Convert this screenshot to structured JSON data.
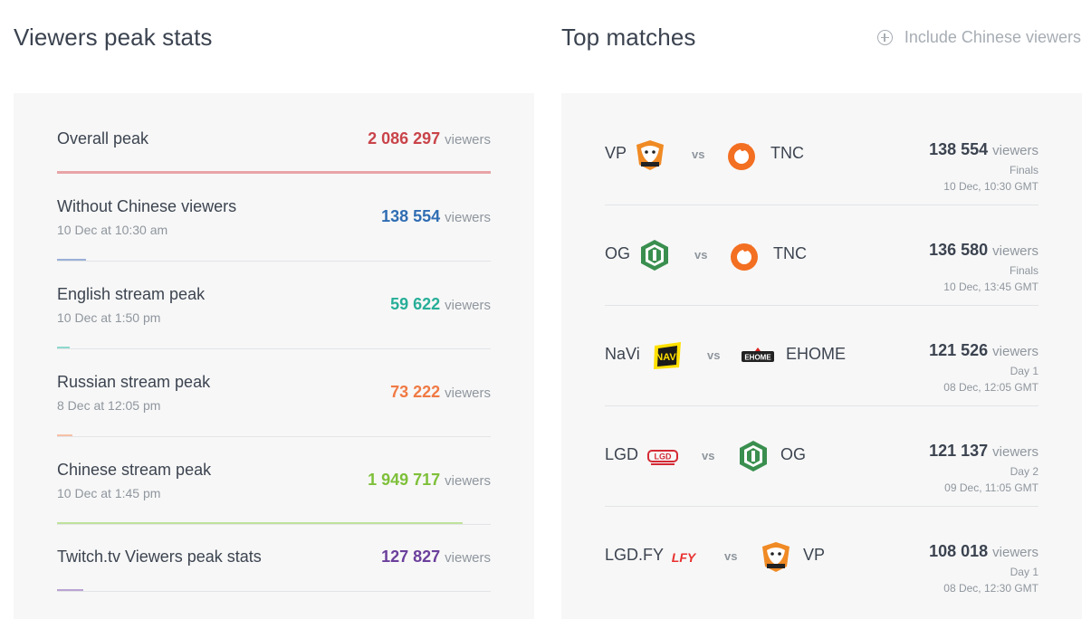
{
  "left": {
    "title": "Viewers peak stats",
    "stats": [
      {
        "label": "Overall peak",
        "date": "",
        "value": "2 086 297",
        "unit": "viewers",
        "color": "#c9444a",
        "bar_color": "#e8a4a6",
        "bar_fraction": 1.0
      },
      {
        "label": "Without Chinese viewers",
        "date": "10 Dec at 10:30 am",
        "value": "138 554",
        "unit": "viewers",
        "color": "#2f6db3",
        "bar_color": "#9ab0d8",
        "bar_fraction": 0.066
      },
      {
        "label": "English stream peak",
        "date": "10 Dec at 1:50 pm",
        "value": "59 622",
        "unit": "viewers",
        "color": "#27ae98",
        "bar_color": "#8fd8cc",
        "bar_fraction": 0.029
      },
      {
        "label": "Russian stream peak",
        "date": "8 Dec at 12:05 pm",
        "value": "73 222",
        "unit": "viewers",
        "color": "#f07a44",
        "bar_color": "#f7c0a5",
        "bar_fraction": 0.035
      },
      {
        "label": "Chinese stream peak",
        "date": "10 Dec at 1:45 pm",
        "value": "1 949 717",
        "unit": "viewers",
        "color": "#7ec03a",
        "bar_color": "#bfe29d",
        "bar_fraction": 0.935
      },
      {
        "label": "Twitch.tv Viewers peak stats",
        "date": "",
        "value": "127 827",
        "unit": "viewers",
        "color": "#6b3f9c",
        "bar_color": "#b9a3d3",
        "bar_fraction": 0.061
      }
    ]
  },
  "right": {
    "title": "Top matches",
    "toggle_label": "Include Chinese viewers",
    "vs_label": "vs",
    "matches": [
      {
        "team1": "VP",
        "logo1": "virtus-pro-logo",
        "team2": "TNC",
        "logo2": "tnc-logo",
        "viewers": "138 554",
        "unit": "viewers",
        "stage": "Finals",
        "date": "10 Dec, 10:30 GMT"
      },
      {
        "team1": "OG",
        "logo1": "og-logo",
        "team2": "TNC",
        "logo2": "tnc-logo",
        "viewers": "136 580",
        "unit": "viewers",
        "stage": "Finals",
        "date": "10 Dec, 13:45 GMT"
      },
      {
        "team1": "NaVi",
        "logo1": "navi-logo",
        "team2": "EHOME",
        "logo2": "ehome-logo",
        "viewers": "121 526",
        "unit": "viewers",
        "stage": "Day 1",
        "date": "08 Dec, 12:05 GMT"
      },
      {
        "team1": "LGD",
        "logo1": "lgd-logo",
        "team2": "OG",
        "logo2": "og-logo",
        "viewers": "121 137",
        "unit": "viewers",
        "stage": "Day 2",
        "date": "09 Dec, 11:05 GMT"
      },
      {
        "team1": "LGD.FY",
        "logo1": "lfy-logo",
        "team2": "VP",
        "logo2": "virtus-pro-logo",
        "viewers": "108 018",
        "unit": "viewers",
        "stage": "Day 1",
        "date": "08 Dec, 12:30 GMT"
      }
    ]
  }
}
